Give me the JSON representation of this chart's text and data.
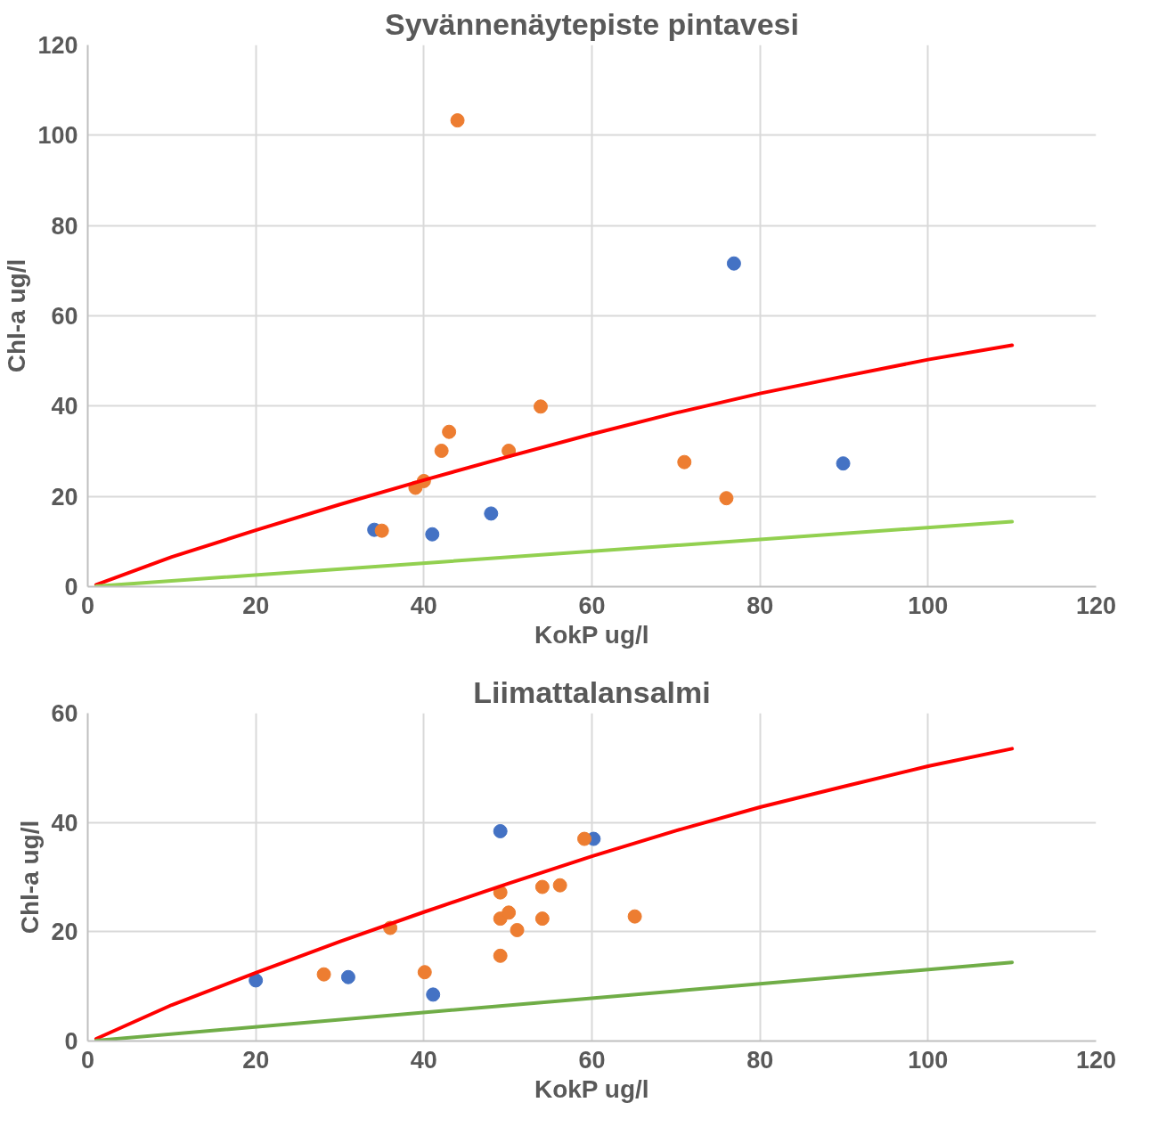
{
  "chart_data": [
    {
      "type": "scatter",
      "title": "Syvännenäytepiste pintavesi",
      "xlabel": "KokP ug/l",
      "ylabel": "Chl-a ug/l",
      "xlim": [
        0,
        120
      ],
      "ylim": [
        0,
        120
      ],
      "xticks": [
        0,
        20,
        40,
        60,
        80,
        100,
        120
      ],
      "yticks": [
        0,
        20,
        40,
        60,
        80,
        100,
        120
      ],
      "grid": true,
      "marker": "circle",
      "series": [
        {
          "color": "#4472c4",
          "x": [
            34.1,
            41.0,
            48.0,
            76.9,
            89.9
          ],
          "values": [
            12.6,
            11.6,
            16.2,
            71.6,
            27.3
          ]
        },
        {
          "color": "#ed7d31",
          "x": [
            35.0,
            44.0,
            39.0,
            40.0,
            42.1,
            43.0,
            50.1,
            53.9,
            71.0,
            76.0
          ],
          "values": [
            12.4,
            103.3,
            21.9,
            23.4,
            30.1,
            34.3,
            30.1,
            39.9,
            27.6,
            19.6
          ]
        },
        {
          "type": "line",
          "marker": "none",
          "line_style": "solid",
          "color": "#ff0000",
          "x": [
            1,
            10,
            20,
            30,
            40,
            50,
            60,
            70,
            80,
            90,
            100,
            110
          ],
          "values": [
            0.4,
            6.6,
            12.5,
            18.2,
            23.6,
            28.8,
            33.8,
            38.5,
            42.8,
            46.6,
            50.3,
            53.5
          ]
        },
        {
          "type": "line",
          "marker": "none",
          "line_style": "solid",
          "color": "#92d050",
          "x": [
            1,
            110
          ],
          "values": [
            0.1,
            14.4
          ]
        }
      ]
    },
    {
      "type": "scatter",
      "title": "Liimattalansalmi",
      "xlabel": "KokP ug/l",
      "ylabel": "Chl-a ug/l",
      "xlim": [
        0,
        120
      ],
      "ylim": [
        0,
        60
      ],
      "xticks": [
        0,
        20,
        40,
        60,
        80,
        100,
        120
      ],
      "yticks": [
        0,
        20,
        40,
        60
      ],
      "grid": true,
      "marker": "circle",
      "series": [
        {
          "color": "#4472c4",
          "x": [
            20.0,
            31.0,
            41.1,
            49.1,
            60.2
          ],
          "values": [
            11.1,
            11.7,
            8.5,
            38.4,
            37.0
          ]
        },
        {
          "color": "#ed7d31",
          "x": [
            28.1,
            36.0,
            40.1,
            49.1,
            49.1,
            50.1,
            51.1,
            49.1,
            54.1,
            54.1,
            56.2,
            59.1,
            65.1
          ],
          "values": [
            12.2,
            20.7,
            12.6,
            27.2,
            22.4,
            23.5,
            20.3,
            15.6,
            28.2,
            22.4,
            28.5,
            37.0,
            22.8
          ]
        },
        {
          "type": "line",
          "marker": "none",
          "line_style": "solid",
          "color": "#ff0000",
          "x": [
            1,
            10,
            20,
            30,
            40,
            50,
            60,
            70,
            80,
            90,
            100,
            110
          ],
          "values": [
            0.4,
            6.6,
            12.5,
            18.2,
            23.6,
            28.8,
            33.8,
            38.5,
            42.8,
            46.6,
            50.3,
            53.5
          ]
        },
        {
          "type": "line",
          "marker": "none",
          "line_style": "solid",
          "color": "#70ad47",
          "x": [
            1,
            110
          ],
          "values": [
            0.1,
            14.4
          ]
        }
      ]
    }
  ]
}
